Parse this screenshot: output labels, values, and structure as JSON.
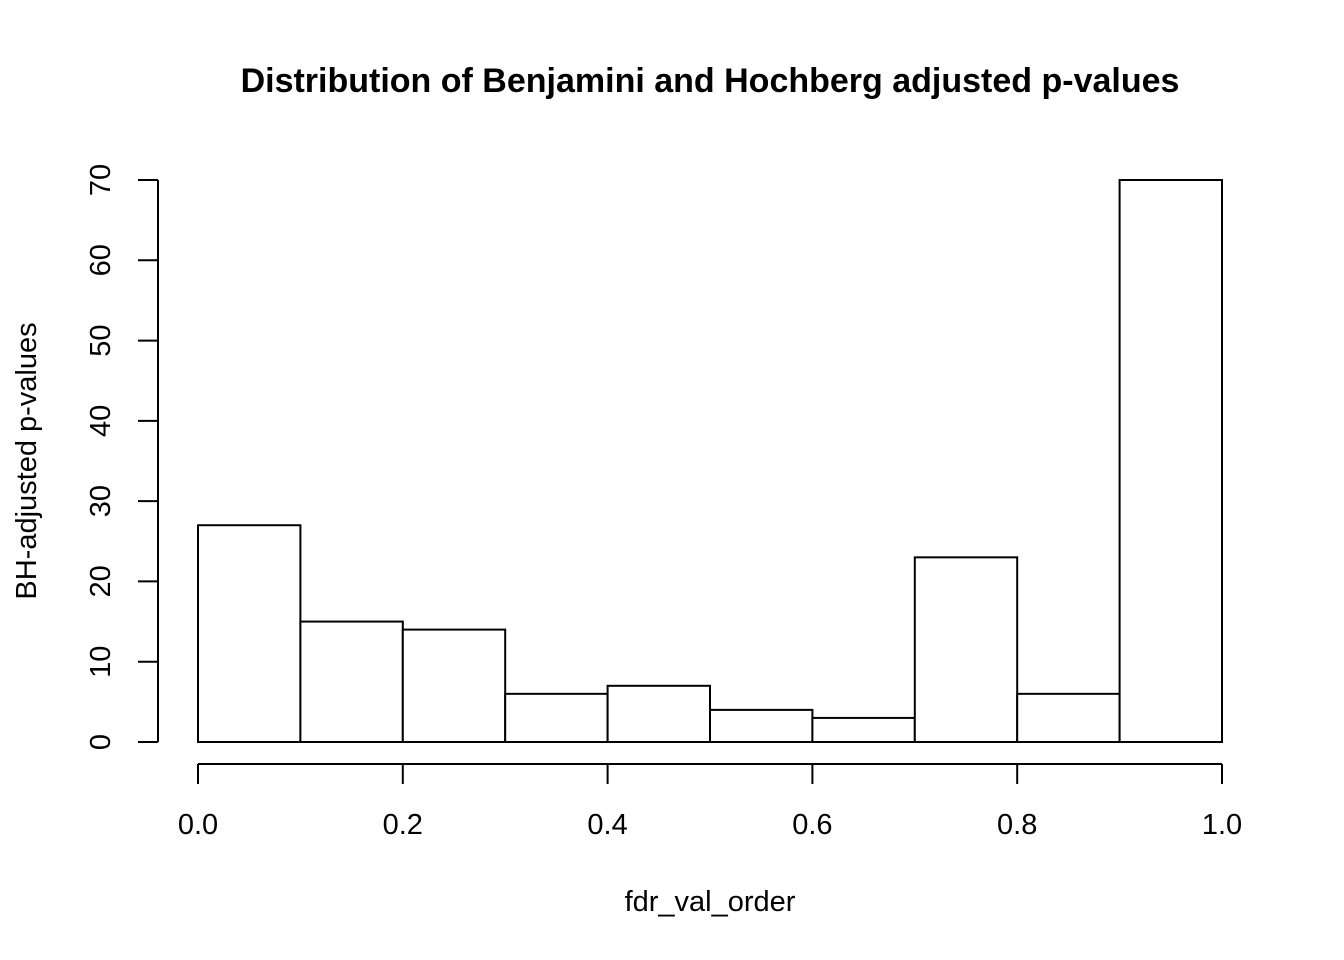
{
  "chart_data": {
    "type": "bar",
    "title": "Distribution of Benjamini and Hochberg adjusted p-values",
    "xlabel": "fdr_val_order",
    "ylabel": "BH-adjusted p-values",
    "bins": [
      {
        "start": 0.0,
        "end": 0.1,
        "value": 27
      },
      {
        "start": 0.1,
        "end": 0.2,
        "value": 15
      },
      {
        "start": 0.2,
        "end": 0.3,
        "value": 14
      },
      {
        "start": 0.3,
        "end": 0.4,
        "value": 6
      },
      {
        "start": 0.4,
        "end": 0.5,
        "value": 7
      },
      {
        "start": 0.5,
        "end": 0.6,
        "value": 4
      },
      {
        "start": 0.6,
        "end": 0.7,
        "value": 3
      },
      {
        "start": 0.7,
        "end": 0.8,
        "value": 23
      },
      {
        "start": 0.8,
        "end": 0.9,
        "value": 6
      },
      {
        "start": 0.9,
        "end": 1.0,
        "value": 70
      }
    ],
    "x_ticks": [
      "0.0",
      "0.2",
      "0.4",
      "0.6",
      "0.8",
      "1.0"
    ],
    "y_ticks": [
      "0",
      "10",
      "20",
      "30",
      "40",
      "50",
      "60",
      "70"
    ],
    "xlim": [
      0,
      1
    ],
    "ylim": [
      0,
      70
    ],
    "grid": false,
    "bar_fill": "#ffffff",
    "bar_stroke": "#000000"
  }
}
